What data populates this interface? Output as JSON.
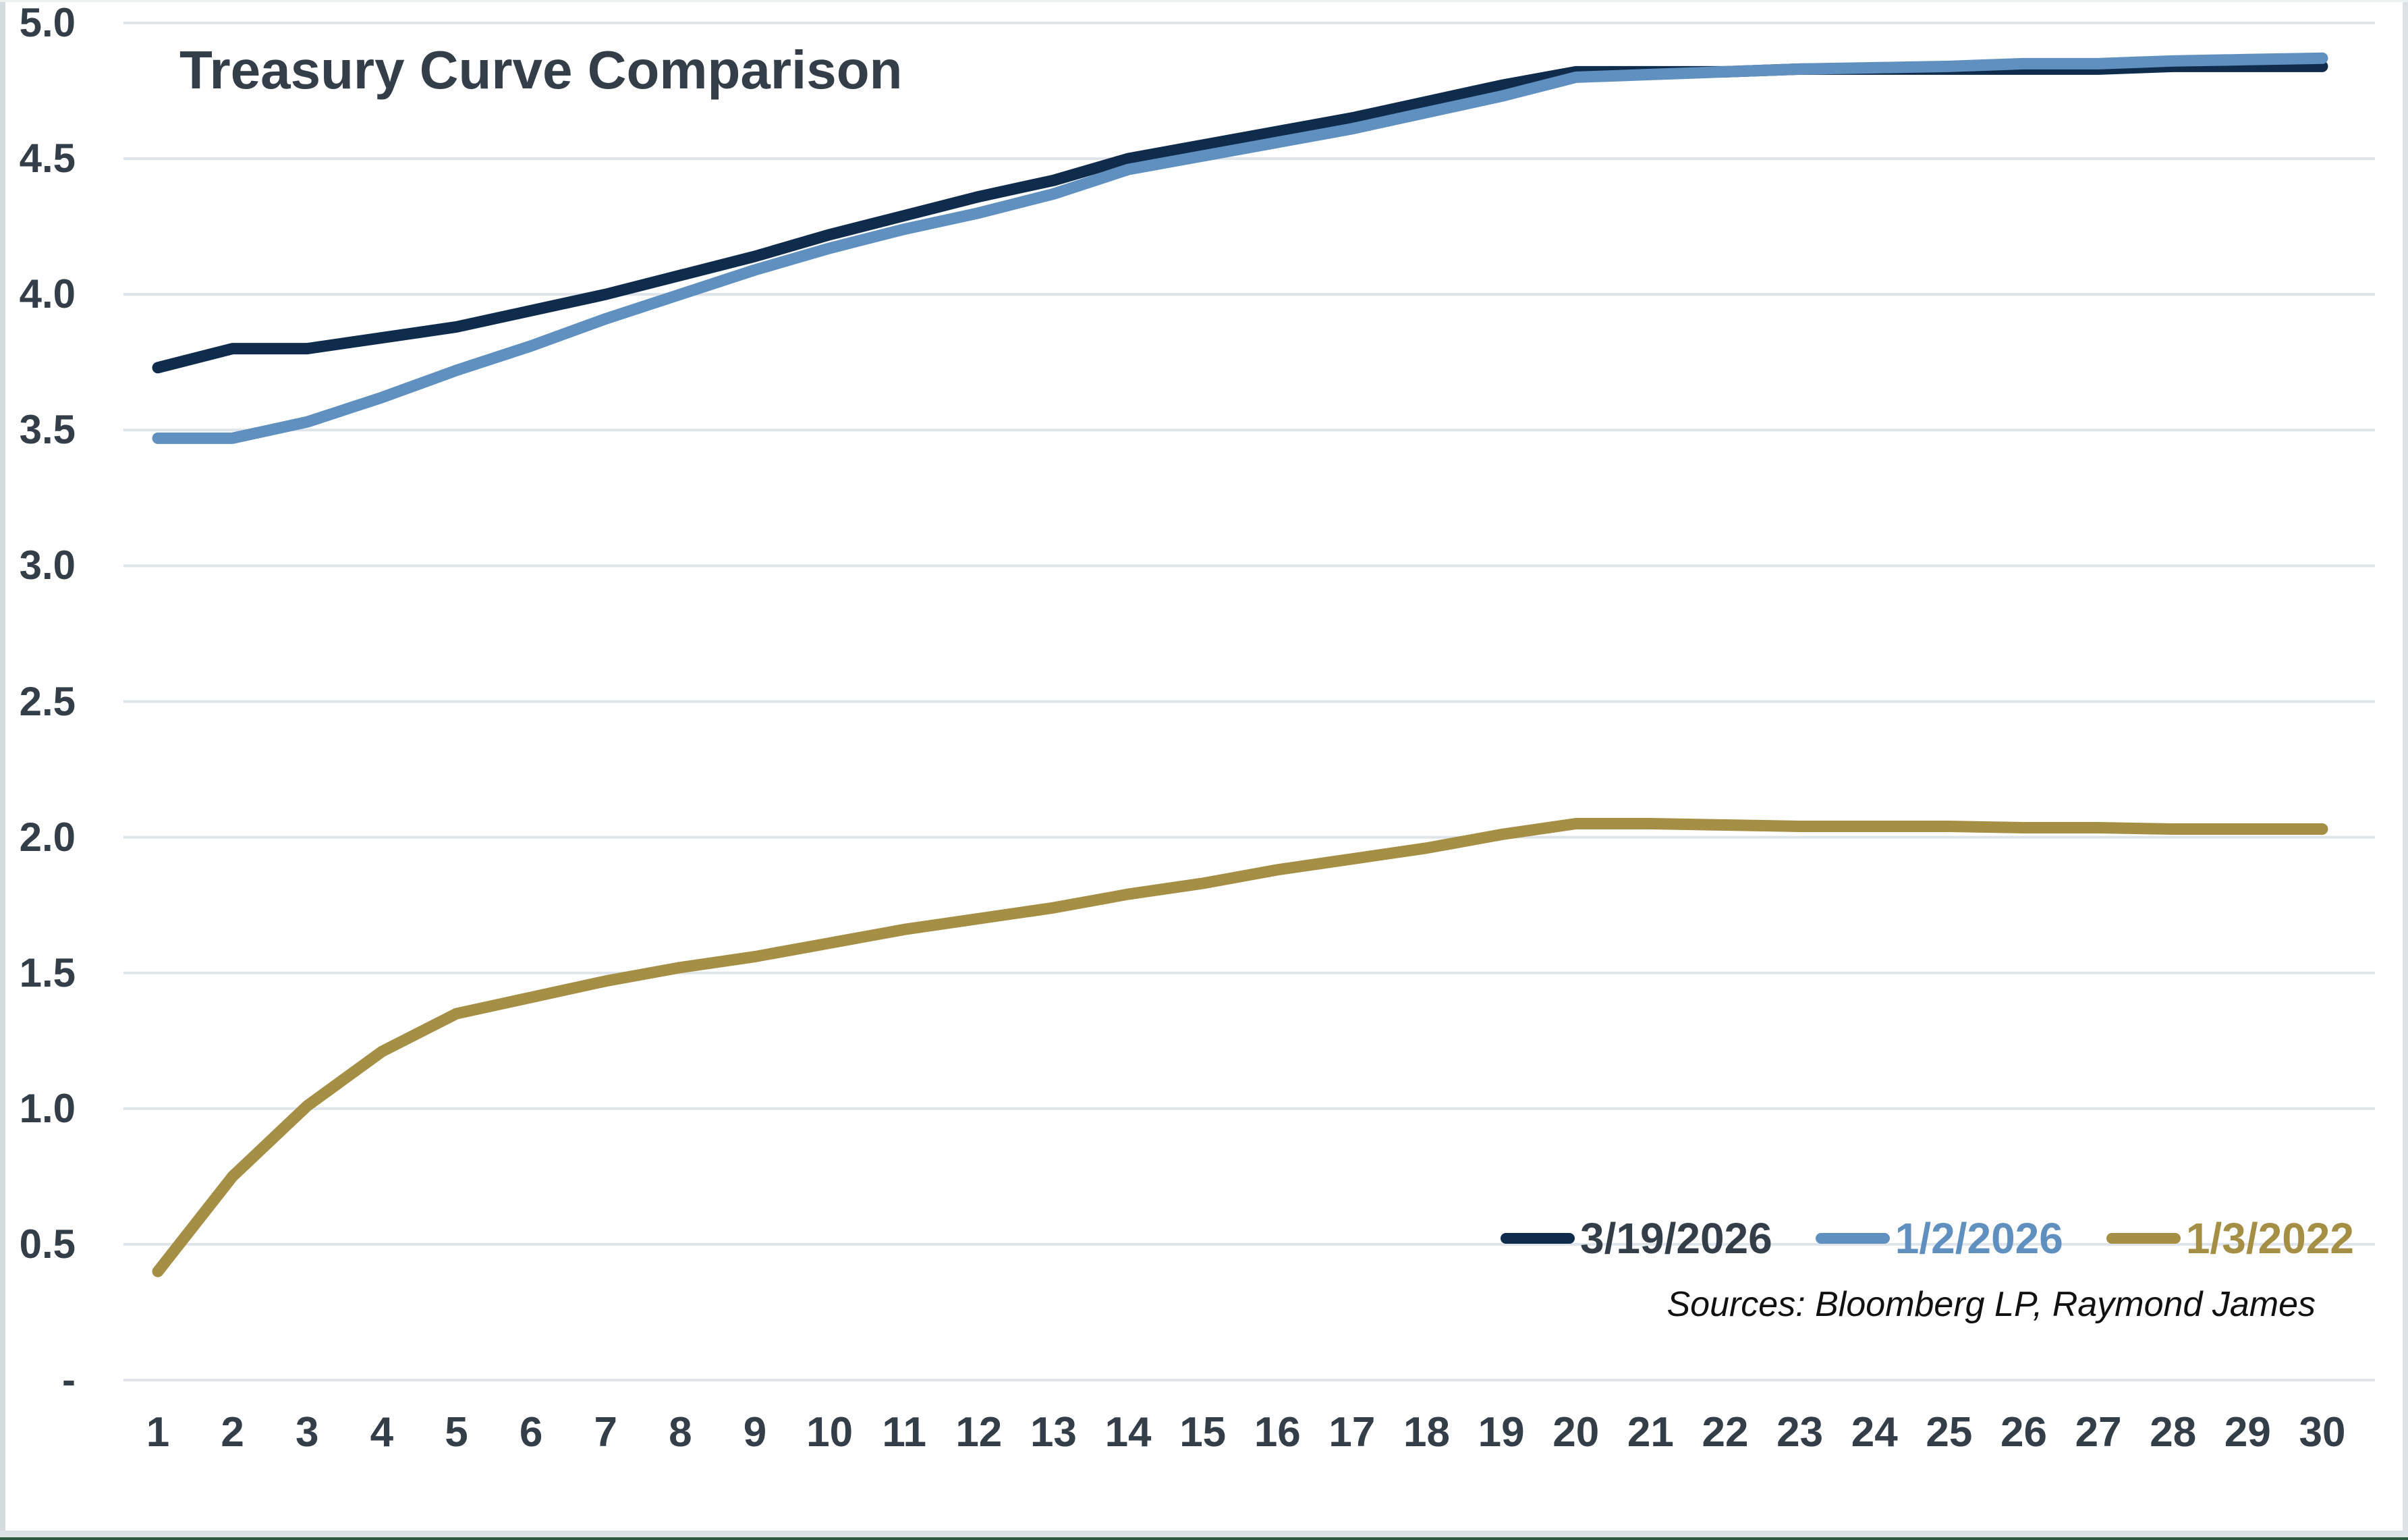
{
  "title": "Treasury Curve Comparison",
  "sources_note": "Sources: Bloomberg LP, Raymond James",
  "colors": {
    "background": "#ffffff",
    "gridline": "#dee4e9",
    "axis_text": "#333e48",
    "title_text": "#333e48",
    "sources_text": "#111111",
    "navy": "#102c4c",
    "steel_blue": "#6090c0",
    "gold": "#a58f45"
  },
  "chart_data": {
    "type": "line",
    "title": "Treasury Curve Comparison",
    "xlabel": "",
    "ylabel": "",
    "xlim": [
      1,
      30
    ],
    "ylim": [
      0,
      5.0
    ],
    "grid": true,
    "legend_position": "bottom-right",
    "x": [
      1,
      2,
      3,
      4,
      5,
      6,
      7,
      8,
      9,
      10,
      11,
      12,
      13,
      14,
      15,
      16,
      17,
      18,
      19,
      20,
      21,
      22,
      23,
      24,
      25,
      26,
      27,
      28,
      29,
      30
    ],
    "xtick_labels": [
      "1",
      "2",
      "3",
      "4",
      "5",
      "6",
      "7",
      "8",
      "9",
      "10",
      "11",
      "12",
      "13",
      "14",
      "15",
      "16",
      "17",
      "18",
      "19",
      "20",
      "21",
      "22",
      "23",
      "24",
      "25",
      "26",
      "27",
      "28",
      "29",
      "30"
    ],
    "ytick_values": [
      0,
      0.5,
      1.0,
      1.5,
      2.0,
      2.5,
      3.0,
      3.5,
      4.0,
      4.5,
      5.0
    ],
    "ytick_labels": [
      "-",
      "0.5",
      "1.0",
      "1.5",
      "2.0",
      "2.5",
      "3.0",
      "3.5",
      "4.0",
      "4.5",
      "5.0"
    ],
    "series": [
      {
        "name": "3/19/2026",
        "color": "#102c4c",
        "label_color": "#333e48",
        "values": [
          3.73,
          3.8,
          3.8,
          3.84,
          3.88,
          3.94,
          4.0,
          4.07,
          4.14,
          4.22,
          4.29,
          4.36,
          4.42,
          4.5,
          4.55,
          4.6,
          4.65,
          4.71,
          4.77,
          4.82,
          4.82,
          4.82,
          4.83,
          4.83,
          4.83,
          4.83,
          4.83,
          4.84,
          4.84,
          4.84
        ]
      },
      {
        "name": "1/2/2026",
        "color": "#6090c0",
        "label_color": "#6090c0",
        "values": [
          3.47,
          3.47,
          3.53,
          3.62,
          3.72,
          3.81,
          3.91,
          4.0,
          4.09,
          4.17,
          4.24,
          4.3,
          4.37,
          4.46,
          4.51,
          4.56,
          4.61,
          4.67,
          4.73,
          4.8,
          4.81,
          4.82,
          4.83,
          4.835,
          4.84,
          4.85,
          4.85,
          4.86,
          4.865,
          4.87
        ]
      },
      {
        "name": "1/3/2022",
        "color": "#a58f45",
        "label_color": "#a58f45",
        "values": [
          0.4,
          0.75,
          1.01,
          1.21,
          1.35,
          1.41,
          1.47,
          1.52,
          1.56,
          1.61,
          1.66,
          1.7,
          1.74,
          1.79,
          1.83,
          1.88,
          1.92,
          1.96,
          2.01,
          2.05,
          2.05,
          2.045,
          2.04,
          2.04,
          2.04,
          2.035,
          2.035,
          2.03,
          2.03,
          2.03
        ]
      }
    ]
  }
}
